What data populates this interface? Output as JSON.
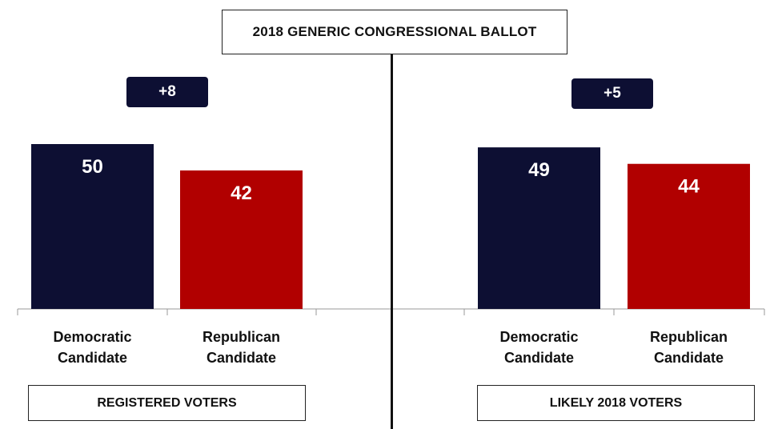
{
  "title": "2018 GENERIC CONGRESSIONAL BALLOT",
  "colors": {
    "democratic": "#0d0f33",
    "republican": "#b10000",
    "badge": "#0d0f33"
  },
  "panels": [
    {
      "label": "REGISTERED VOTERS",
      "lead": "+8"
    },
    {
      "label": "LIKELY 2018 VOTERS",
      "lead": "+5"
    }
  ],
  "chart_data": [
    {
      "type": "bar",
      "title": "REGISTERED VOTERS",
      "categories": [
        "Democratic Candidate",
        "Republican Candidate"
      ],
      "values": [
        50,
        42
      ],
      "ylim": [
        0,
        55
      ],
      "grid": false,
      "annotations": [
        "+8"
      ]
    },
    {
      "type": "bar",
      "title": "LIKELY 2018 VOTERS",
      "categories": [
        "Democratic Candidate",
        "Republican Candidate"
      ],
      "values": [
        49,
        44
      ],
      "ylim": [
        0,
        55
      ],
      "grid": false,
      "annotations": [
        "+5"
      ]
    }
  ]
}
